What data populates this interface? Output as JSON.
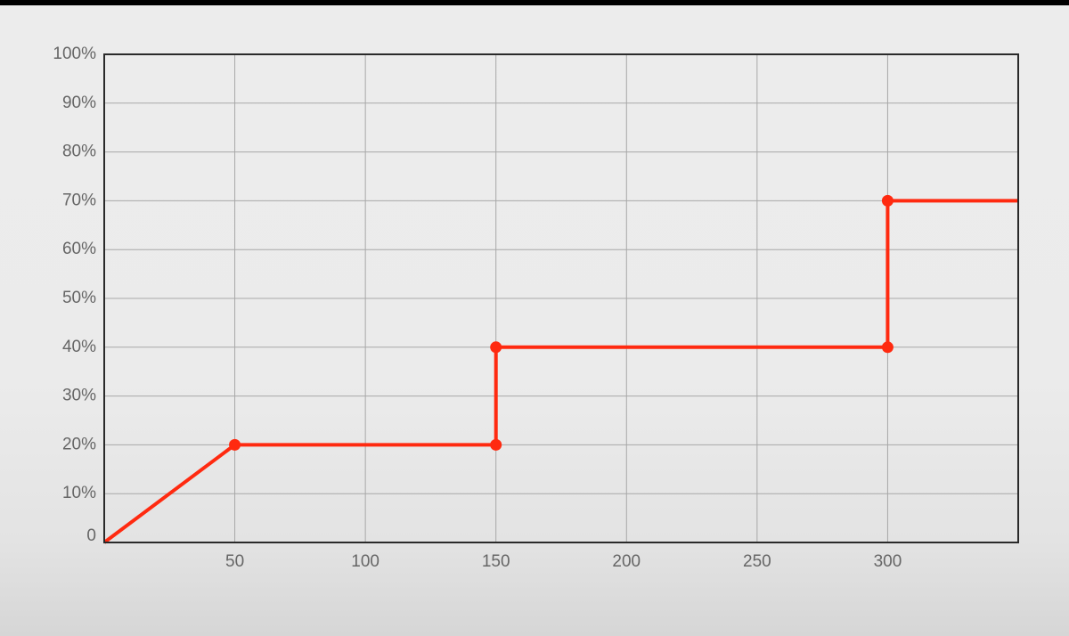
{
  "chart_data": {
    "type": "line",
    "title": "",
    "xlabel": "",
    "ylabel": "",
    "xlim": [
      0,
      350
    ],
    "ylim": [
      0,
      100
    ],
    "x_ticks": [
      50,
      100,
      150,
      200,
      250,
      300
    ],
    "x_tick_labels": [
      "50",
      "100",
      "150",
      "200",
      "250",
      "300"
    ],
    "y_ticks": [
      0,
      10,
      20,
      30,
      40,
      50,
      60,
      70,
      80,
      90,
      100
    ],
    "y_tick_labels": [
      "0",
      "10%",
      "20%",
      "30%",
      "40%",
      "50%",
      "60%",
      "70%",
      "80%",
      "90%",
      "100%"
    ],
    "grid": true,
    "legend": "none",
    "series": [
      {
        "color": "#ff2a10",
        "points": [
          {
            "x": 0,
            "y": 0
          },
          {
            "x": 50,
            "y": 20
          },
          {
            "x": 150,
            "y": 20
          },
          {
            "x": 150,
            "y": 40
          },
          {
            "x": 300,
            "y": 40
          },
          {
            "x": 300,
            "y": 70
          },
          {
            "x": 350,
            "y": 70
          }
        ],
        "markers": [
          {
            "x": 50,
            "y": 20
          },
          {
            "x": 150,
            "y": 20
          },
          {
            "x": 150,
            "y": 40
          },
          {
            "x": 300,
            "y": 40
          },
          {
            "x": 300,
            "y": 70
          }
        ]
      }
    ]
  }
}
